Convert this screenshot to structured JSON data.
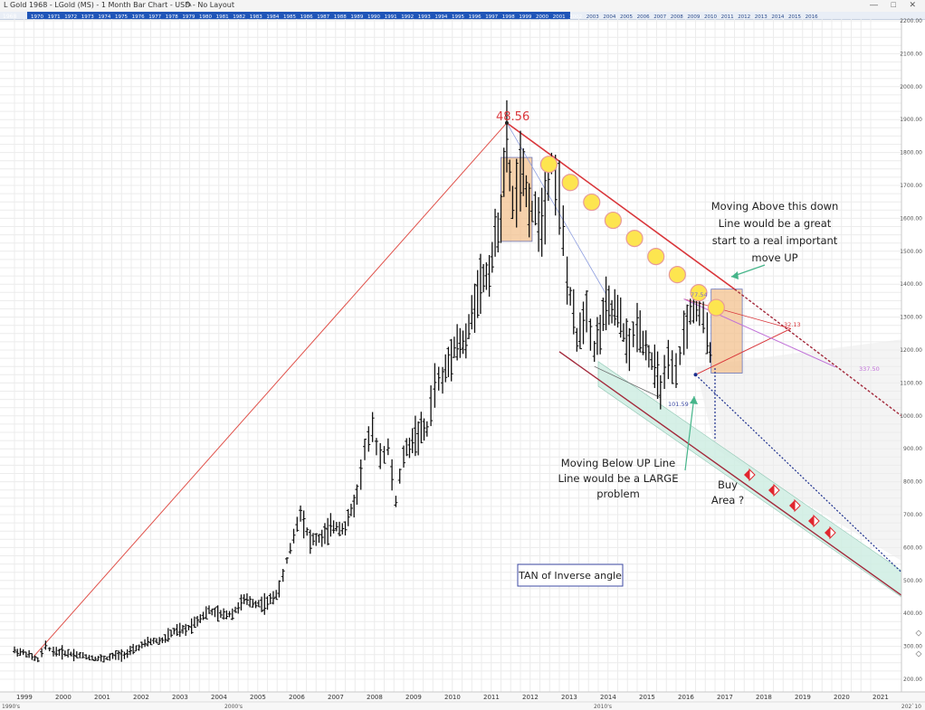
{
  "window": {
    "title": "L Gold    1968 - LGold (MS) - 1 Month Bar Chart - USD - No Layout",
    "controls": "— □ ✕"
  },
  "year_navigator": {
    "first_label": "1968",
    "years": [
      "1970",
      "1971",
      "1972",
      "1973",
      "1974",
      "1975",
      "1976",
      "1977",
      "1978",
      "1979",
      "1980",
      "1981",
      "1982",
      "1983",
      "1984",
      "1985",
      "1986",
      "1987",
      "1988",
      "1989",
      "1990",
      "1991",
      "1992",
      "1993",
      "1994",
      "1995",
      "1996",
      "1997",
      "1998",
      "1999",
      "2000",
      "2001",
      "2002",
      "2003",
      "2004",
      "2005",
      "2006",
      "2007",
      "2008",
      "2009",
      "2010",
      "2011",
      "2012",
      "2013",
      "2014",
      "2015",
      "2016"
    ]
  },
  "chart_data": {
    "type": "bar",
    "subtype": "ohlc-monthly",
    "series_name": "LGold (MS)",
    "x_ticks": [
      "1999",
      "2000",
      "2001",
      "2002",
      "2003",
      "2004",
      "2005",
      "2006",
      "2007",
      "2008",
      "2009",
      "2010",
      "2011",
      "2012",
      "2013",
      "2014",
      "2015",
      "2016",
      "2017",
      "2018",
      "2019",
      "2020",
      "2021"
    ],
    "decade_labels": [
      "1990's",
      "2000's",
      "2010's",
      "202`10"
    ],
    "y_ticks": [
      200,
      300,
      400,
      500,
      600,
      700,
      800,
      900,
      1000,
      1100,
      1200,
      1300,
      1400,
      1500,
      1600,
      1700,
      1800,
      1900,
      2000,
      2100,
      2200
    ],
    "y_tick_labels": [
      "200.00",
      "300.00",
      "400.00",
      "500.00",
      "600.00",
      "700.00",
      "800.00",
      "900.00",
      "1000.00",
      "1100.00",
      "1200.00",
      "1300.00",
      "1400.00",
      "1500.00",
      "1600.00",
      "1700.00",
      "1800.00",
      "1900.00",
      "2000.00",
      "2100.00",
      "2200.00"
    ],
    "ylim": [
      180,
      2240
    ],
    "xlim": [
      1998.7,
      2021.8
    ],
    "price_path": [
      [
        1999.0,
        287
      ],
      [
        1999.3,
        278
      ],
      [
        1999.6,
        258
      ],
      [
        1999.8,
        300
      ],
      [
        2000.0,
        285
      ],
      [
        2000.3,
        280
      ],
      [
        2000.6,
        275
      ],
      [
        2001.0,
        265
      ],
      [
        2001.3,
        262
      ],
      [
        2001.6,
        272
      ],
      [
        2001.9,
        278
      ],
      [
        2002.2,
        298
      ],
      [
        2002.5,
        315
      ],
      [
        2002.8,
        318
      ],
      [
        2003.1,
        345
      ],
      [
        2003.4,
        350
      ],
      [
        2003.7,
        380
      ],
      [
        2004.0,
        408
      ],
      [
        2004.3,
        395
      ],
      [
        2004.6,
        400
      ],
      [
        2004.9,
        440
      ],
      [
        2005.2,
        430
      ],
      [
        2005.5,
        430
      ],
      [
        2005.8,
        470
      ],
      [
        2006.0,
        560
      ],
      [
        2006.35,
        710
      ],
      [
        2006.6,
        620
      ],
      [
        2006.9,
        630
      ],
      [
        2007.2,
        665
      ],
      [
        2007.5,
        660
      ],
      [
        2007.8,
        760
      ],
      [
        2008.0,
        900
      ],
      [
        2008.2,
        950
      ],
      [
        2008.4,
        880
      ],
      [
        2008.6,
        900
      ],
      [
        2008.8,
        740
      ],
      [
        2009.0,
        880
      ],
      [
        2009.3,
        940
      ],
      [
        2009.6,
        960
      ],
      [
        2009.8,
        1100
      ],
      [
        2010.0,
        1110
      ],
      [
        2010.3,
        1220
      ],
      [
        2010.6,
        1220
      ],
      [
        2010.9,
        1390
      ],
      [
        2011.2,
        1440
      ],
      [
        2011.5,
        1620
      ],
      [
        2011.65,
        1830
      ],
      [
        2011.8,
        1640
      ],
      [
        2012.0,
        1740
      ],
      [
        2012.3,
        1620
      ],
      [
        2012.55,
        1600
      ],
      [
        2012.8,
        1770
      ],
      [
        2013.0,
        1670
      ],
      [
        2013.2,
        1420
      ],
      [
        2013.45,
        1230
      ],
      [
        2013.7,
        1330
      ],
      [
        2013.9,
        1200
      ],
      [
        2014.2,
        1330
      ],
      [
        2014.5,
        1310
      ],
      [
        2014.8,
        1200
      ],
      [
        2015.0,
        1280
      ],
      [
        2015.3,
        1190
      ],
      [
        2015.6,
        1090
      ],
      [
        2015.8,
        1150
      ],
      [
        2016.0,
        1120
      ],
      [
        2016.2,
        1250
      ],
      [
        2016.45,
        1340
      ],
      [
        2016.6,
        1320
      ],
      [
        2016.8,
        1250
      ],
      [
        2016.95,
        1160
      ]
    ],
    "annotations": {
      "peak_label": "48.56",
      "down_line_text": [
        "Moving Above this down",
        "Line would be a great",
        "start to a real important",
        "move UP"
      ],
      "up_line_text": [
        "Moving Below UP Line",
        "Line would be a  LARGE",
        "problem"
      ],
      "buy_area_text": [
        "Buy",
        "Area ?"
      ],
      "tan_box_label": "TAN of Inverse angle",
      "fib_label_1": "77.54",
      "fib_label_2": "32.13",
      "fib_label_3": "337.50",
      "low_label": "101.59"
    },
    "colors": {
      "bars": "#111111",
      "trend_red": "#e0514a",
      "down_line": "#d9363b",
      "channel_dark": "#a3293b",
      "channel_fill": "#cfeee3",
      "tan_box": "#f3c28f",
      "circle_fill": "#fde54f",
      "circle_stroke": "#e89a9a",
      "purple": "#c070d8",
      "blue_dotted": "#1c2f8e"
    }
  }
}
